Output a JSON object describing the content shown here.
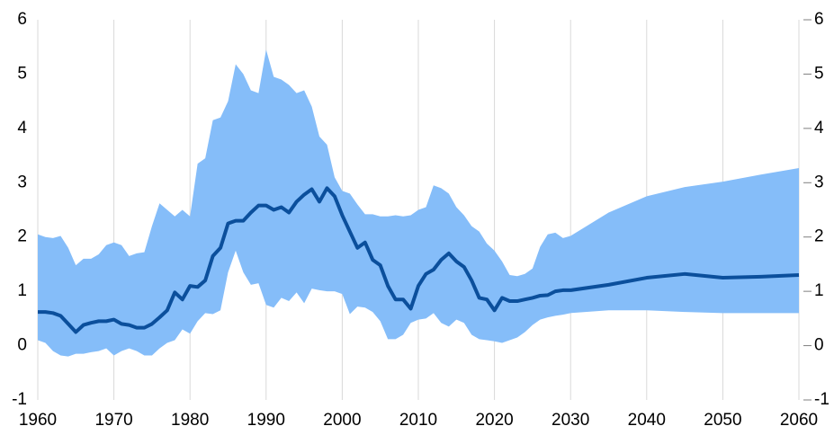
{
  "chart_data": {
    "type": "line",
    "grid": true,
    "x": [
      1960,
      1961,
      1962,
      1963,
      1964,
      1965,
      1966,
      1967,
      1968,
      1969,
      1970,
      1971,
      1972,
      1973,
      1974,
      1975,
      1976,
      1977,
      1978,
      1979,
      1980,
      1981,
      1982,
      1983,
      1984,
      1985,
      1986,
      1987,
      1988,
      1989,
      1990,
      1991,
      1992,
      1993,
      1994,
      1995,
      1996,
      1997,
      1998,
      1999,
      2000,
      2001,
      2002,
      2003,
      2004,
      2005,
      2006,
      2007,
      2008,
      2009,
      2010,
      2011,
      2012,
      2013,
      2014,
      2015,
      2016,
      2017,
      2018,
      2019,
      2020,
      2021,
      2022,
      2023,
      2024,
      2025,
      2026,
      2027,
      2028,
      2029,
      2030,
      2035,
      2040,
      2045,
      2050,
      2055,
      2060
    ],
    "series": [
      {
        "color": "#0b4f9c",
        "values": [
          0.62,
          0.62,
          0.6,
          0.55,
          0.4,
          0.25,
          0.38,
          0.42,
          0.45,
          0.45,
          0.48,
          0.4,
          0.38,
          0.33,
          0.33,
          0.4,
          0.52,
          0.65,
          0.98,
          0.85,
          1.1,
          1.08,
          1.2,
          1.65,
          1.8,
          2.25,
          2.3,
          2.3,
          2.45,
          2.58,
          2.58,
          2.5,
          2.55,
          2.45,
          2.65,
          2.78,
          2.88,
          2.65,
          2.9,
          2.75,
          2.4,
          2.1,
          1.8,
          1.9,
          1.58,
          1.48,
          1.1,
          0.85,
          0.85,
          0.68,
          1.1,
          1.32,
          1.4,
          1.58,
          1.7,
          1.55,
          1.45,
          1.2,
          0.88,
          0.85,
          0.65,
          0.88,
          0.82,
          0.82,
          0.85,
          0.88,
          0.92,
          0.93,
          1.0,
          1.02,
          1.02,
          1.12,
          1.25,
          1.32,
          1.25,
          1.27,
          1.3
        ]
      }
    ],
    "band": {
      "color": "#85bdf9",
      "upper": [
        2.05,
        2.0,
        1.98,
        2.02,
        1.8,
        1.48,
        1.6,
        1.6,
        1.68,
        1.85,
        1.9,
        1.85,
        1.65,
        1.7,
        1.72,
        2.2,
        2.62,
        2.5,
        2.38,
        2.5,
        2.38,
        3.35,
        3.45,
        4.15,
        4.2,
        4.5,
        5.18,
        5.0,
        4.7,
        4.65,
        5.45,
        4.95,
        4.9,
        4.8,
        4.65,
        4.7,
        4.4,
        3.85,
        3.7,
        3.1,
        2.85,
        2.8,
        2.6,
        2.42,
        2.42,
        2.38,
        2.38,
        2.4,
        2.38,
        2.4,
        2.5,
        2.55,
        2.95,
        2.9,
        2.8,
        2.55,
        2.4,
        2.2,
        2.1,
        1.88,
        1.75,
        1.55,
        1.3,
        1.28,
        1.32,
        1.42,
        1.82,
        2.05,
        2.08,
        1.98,
        2.02,
        2.45,
        2.75,
        2.92,
        3.02,
        3.15,
        3.27
      ],
      "lower": [
        0.1,
        0.05,
        -0.1,
        -0.18,
        -0.2,
        -0.15,
        -0.15,
        -0.12,
        -0.1,
        -0.05,
        -0.18,
        -0.1,
        -0.05,
        -0.1,
        -0.18,
        -0.18,
        -0.05,
        0.05,
        0.1,
        0.3,
        0.22,
        0.45,
        0.6,
        0.58,
        0.65,
        1.35,
        1.75,
        1.35,
        1.12,
        1.15,
        0.75,
        0.7,
        0.88,
        0.82,
        0.98,
        0.78,
        1.05,
        1.02,
        1.0,
        1.0,
        0.95,
        0.58,
        0.72,
        0.7,
        0.62,
        0.45,
        0.12,
        0.12,
        0.2,
        0.42,
        0.48,
        0.5,
        0.6,
        0.42,
        0.35,
        0.48,
        0.42,
        0.2,
        0.12,
        0.1,
        0.08,
        0.05,
        0.1,
        0.15,
        0.25,
        0.38,
        0.48,
        0.52,
        0.55,
        0.57,
        0.6,
        0.65,
        0.65,
        0.62,
        0.6,
        0.6,
        0.6
      ]
    },
    "xlim": [
      1960,
      2060
    ],
    "xticks": [
      1960,
      1970,
      1980,
      1990,
      2000,
      2010,
      2020,
      2030,
      2040,
      2050,
      2060
    ],
    "ylim": [
      -1,
      6
    ],
    "yticks": [
      -1,
      0,
      1,
      2,
      3,
      4,
      5,
      6
    ],
    "y2lim": [
      -1,
      6
    ],
    "y2ticks": [
      -1,
      0,
      1,
      2,
      3,
      4,
      5,
      6
    ]
  }
}
